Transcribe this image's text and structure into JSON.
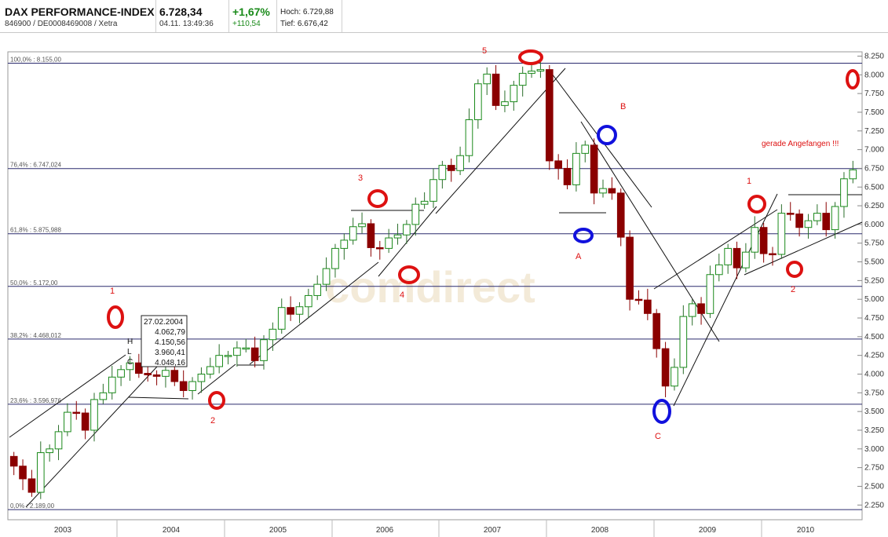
{
  "header": {
    "title": "DAX PERFORMANCE-INDEX",
    "subtitle": "846900 / DE0008469008 / Xetra",
    "price": "6.728,34",
    "datetime": "04.11. 13:49:36",
    "change_pct": "+1,67%",
    "change_abs": "+110,54",
    "high": "Hoch: 6.729,88",
    "low": "Tief: 6.676,42"
  },
  "colors": {
    "up": "#1a8a1a",
    "down": "#8b0000",
    "fib_line": "#2b2b6e",
    "annotation_red": "#dd1111",
    "annotation_blue": "#1111dd"
  },
  "chart_data": {
    "type": "candlestick",
    "title": "DAX PERFORMANCE-INDEX",
    "x_labels": [
      "2003",
      "2004",
      "2005",
      "2006",
      "2007",
      "2008",
      "2009",
      "2010"
    ],
    "y_ticks": [
      "8.250",
      "8.000",
      "7.750",
      "7.500",
      "7.250",
      "7.000",
      "6.750",
      "6.500",
      "6.250",
      "6.000",
      "5.750",
      "5.500",
      "5.250",
      "5.000",
      "4.750",
      "4.500",
      "4.250",
      "4.000",
      "3.750",
      "3.500",
      "3.250",
      "3.000",
      "2.750",
      "2.500",
      "2.250"
    ],
    "y_tick_values": [
      8250,
      8000,
      7750,
      7500,
      7250,
      7000,
      6750,
      6500,
      6250,
      6000,
      5750,
      5500,
      5250,
      5000,
      4750,
      4500,
      4250,
      4000,
      3750,
      3500,
      3250,
      3000,
      2750,
      2500,
      2250
    ],
    "ylim": [
      2150,
      8300
    ],
    "grid": false,
    "fib_levels": [
      {
        "label": "100,0% : 8.155,00",
        "value": 8155
      },
      {
        "label": "76,4% : 6.747,024",
        "value": 6747
      },
      {
        "label": "61,8% : 5.875,988",
        "value": 5876
      },
      {
        "label": "50,0% : 5.172,00",
        "value": 5172
      },
      {
        "label": "38,2% : 4.468,012",
        "value": 4468
      },
      {
        "label": "23,6% : 3.596,976",
        "value": 3597
      },
      {
        "label": "0,0% : 2.189,00",
        "value": 2189
      }
    ],
    "closes_monthly_2003_to_2010": [
      2770,
      2600,
      2420,
      2950,
      3000,
      3230,
      3490,
      3480,
      3250,
      3660,
      3750,
      3960,
      4060,
      4150,
      4010,
      3990,
      3970,
      4050,
      3900,
      3780,
      3900,
      4000,
      4100,
      4250,
      4250,
      4350,
      4350,
      4180,
      4460,
      4600,
      4890,
      4800,
      4900,
      5050,
      5200,
      5410,
      5680,
      5790,
      5970,
      6010,
      5690,
      5680,
      5820,
      5860,
      6000,
      6270,
      6310,
      6600,
      6790,
      6720,
      6920,
      7400,
      7880,
      8010,
      7590,
      7640,
      7860,
      8020,
      8050,
      8070,
      6850,
      6750,
      6530,
      6950,
      7060,
      6420,
      6480,
      6420,
      5830,
      5000,
      4990,
      4810,
      4340,
      3840,
      4090,
      4770,
      4940,
      4810,
      5330,
      5460,
      5680,
      5420,
      5630,
      5960,
      5610,
      5600,
      6150,
      6140,
      5960,
      6050,
      6150,
      5930,
      6240,
      6610,
      6730
    ],
    "annotations": {
      "wave_labels_red": [
        "1",
        "2",
        "3",
        "4",
        "5",
        "B",
        "A",
        "C",
        "1",
        "2"
      ],
      "note": "gerade Angefangen !!!",
      "tooltip": [
        "27.02.2004",
        "4.062,79",
        "4.150,56",
        "3.960,41",
        "4.048,16"
      ],
      "tooltip_keys": [
        "H",
        "L",
        "C"
      ],
      "watermark": "comdirect"
    }
  }
}
